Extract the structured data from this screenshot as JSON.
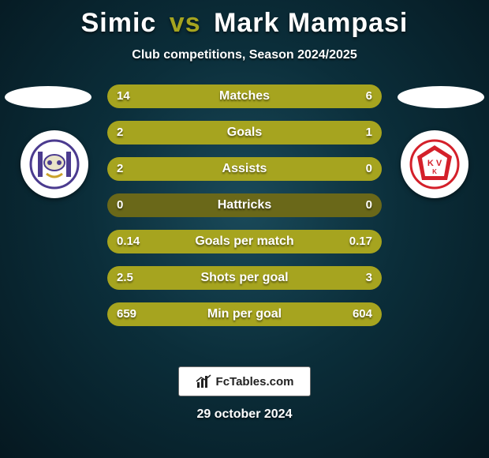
{
  "colors": {
    "bg_center": "#1a4a5a",
    "bg_outer": "#051820",
    "accent_light": "#a6a41f",
    "accent_dark": "#6a6819",
    "text": "#ffffff"
  },
  "title": {
    "player1": "Simic",
    "vs": "vs",
    "player2": "Mark Mampasi",
    "fontsize": 34
  },
  "subtitle": "Club competitions, Season 2024/2025",
  "badges": {
    "left": {
      "name": "RSC Anderlecht",
      "primary": "#4b3b8f",
      "secondary": "#ffffff"
    },
    "right": {
      "name": "KV Kortrijk",
      "primary": "#d4202a",
      "secondary": "#ffffff"
    }
  },
  "rows": [
    {
      "label": "Matches",
      "left": "14",
      "right": "6",
      "left_pct": 70,
      "right_pct": 30
    },
    {
      "label": "Goals",
      "left": "2",
      "right": "1",
      "left_pct": 66,
      "right_pct": 34
    },
    {
      "label": "Assists",
      "left": "2",
      "right": "0",
      "left_pct": 100,
      "right_pct": 0
    },
    {
      "label": "Hattricks",
      "left": "0",
      "right": "0",
      "left_pct": 0,
      "right_pct": 0
    },
    {
      "label": "Goals per match",
      "left": "0.14",
      "right": "0.17",
      "left_pct": 45,
      "right_pct": 55
    },
    {
      "label": "Shots per goal",
      "left": "2.5",
      "right": "3",
      "left_pct": 45,
      "right_pct": 55
    },
    {
      "label": "Min per goal",
      "left": "659",
      "right": "604",
      "left_pct": 52,
      "right_pct": 48
    }
  ],
  "row_style": {
    "height": 30,
    "gap": 16,
    "radius": 15,
    "label_fontsize": 16,
    "value_fontsize": 15
  },
  "footer": {
    "site": "FcTables.com",
    "date": "29 october 2024"
  }
}
